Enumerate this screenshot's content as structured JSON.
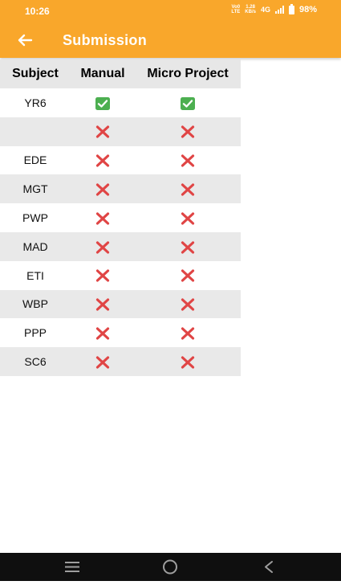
{
  "status_bar": {
    "time": "10:26",
    "volte_line1": "Vo0",
    "volte_line2": "LTE",
    "speed_line1": "1.28",
    "speed_line2": "KB/s",
    "network": "4G",
    "battery": "98%"
  },
  "toolbar": {
    "title": "Submission",
    "back_icon": "arrow-left-icon"
  },
  "table": {
    "headers": [
      "Subject",
      "Manual",
      "Micro Project"
    ],
    "rows": [
      {
        "subject": "YR6",
        "manual": "check",
        "micro_project": "check"
      },
      {
        "subject": "",
        "manual": "cross",
        "micro_project": "cross"
      },
      {
        "subject": "EDE",
        "manual": "cross",
        "micro_project": "cross"
      },
      {
        "subject": "MGT",
        "manual": "cross",
        "micro_project": "cross"
      },
      {
        "subject": "PWP",
        "manual": "cross",
        "micro_project": "cross"
      },
      {
        "subject": "MAD",
        "manual": "cross",
        "micro_project": "cross"
      },
      {
        "subject": "ETI",
        "manual": "cross",
        "micro_project": "cross"
      },
      {
        "subject": "WBP",
        "manual": "cross",
        "micro_project": "cross"
      },
      {
        "subject": "PPP",
        "manual": "cross",
        "micro_project": "cross"
      },
      {
        "subject": "SC6",
        "manual": "cross",
        "micro_project": "cross"
      }
    ]
  },
  "colors": {
    "accent": "#f9a72b",
    "check_green": "#4caf50",
    "cross_red": "#e04545"
  },
  "navigation_bar": {
    "icons": [
      "menu-icon",
      "home-circle-icon",
      "back-chevron-icon"
    ]
  }
}
